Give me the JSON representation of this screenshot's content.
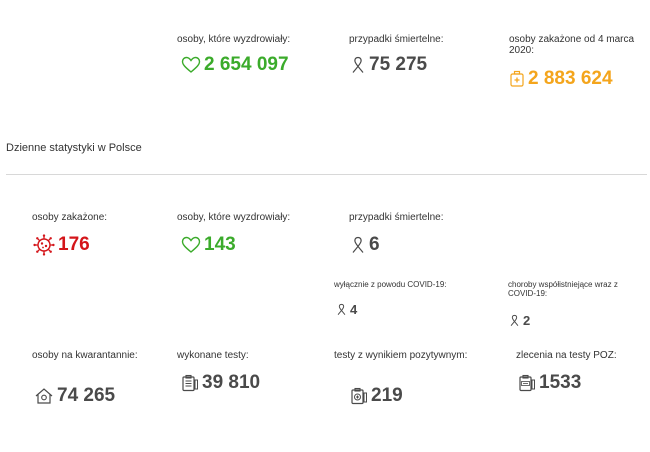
{
  "summary": {
    "recovered": {
      "label": "osoby, które wyzdrowiały:",
      "value": "2 654 097",
      "icon": "heart-icon"
    },
    "deaths": {
      "label": "przypadki śmiertelne:",
      "value": "75 275",
      "icon": "ribbon-icon"
    },
    "infected_since": {
      "label": "osoby zakażone od 4 marca 2020:",
      "value": "2 883 624",
      "icon": "medical-bag-icon"
    }
  },
  "daily": {
    "title": "Dzienne statystyki w Polsce",
    "infected": {
      "label": "osoby zakażone:",
      "value": "176",
      "icon": "virus-icon"
    },
    "recovered": {
      "label": "osoby, które wyzdrowiały:",
      "value": "143",
      "icon": "heart-icon"
    },
    "deaths": {
      "label": "przypadki śmiertelne:",
      "value": "6",
      "icon": "ribbon-icon"
    },
    "deaths_covid_only": {
      "label": "wyłącznie z powodu COVID-19:",
      "value": "4",
      "icon": "ribbon-icon"
    },
    "deaths_comorbid": {
      "label": "choroby współistniejące wraz z COVID-19:",
      "value": "2",
      "icon": "ribbon-icon"
    },
    "quarantine": {
      "label": "osoby na kwarantannie:",
      "value": "74 265",
      "icon": "house-icon"
    },
    "tests": {
      "label": "wykonane testy:",
      "value": "39 810",
      "icon": "clipboard-icon"
    },
    "positive_tests": {
      "label": "testy z wynikiem pozytywnym:",
      "value": "219",
      "icon": "positive-test-icon"
    },
    "poz_orders": {
      "label": "zlecenia na testy POZ:",
      "value": "1533",
      "icon": "poz-clipboard-icon"
    }
  },
  "colors": {
    "green": "#3bab2b",
    "gray": "#4a4a4a",
    "orange": "#f4a51c",
    "red": "#d4151a"
  }
}
